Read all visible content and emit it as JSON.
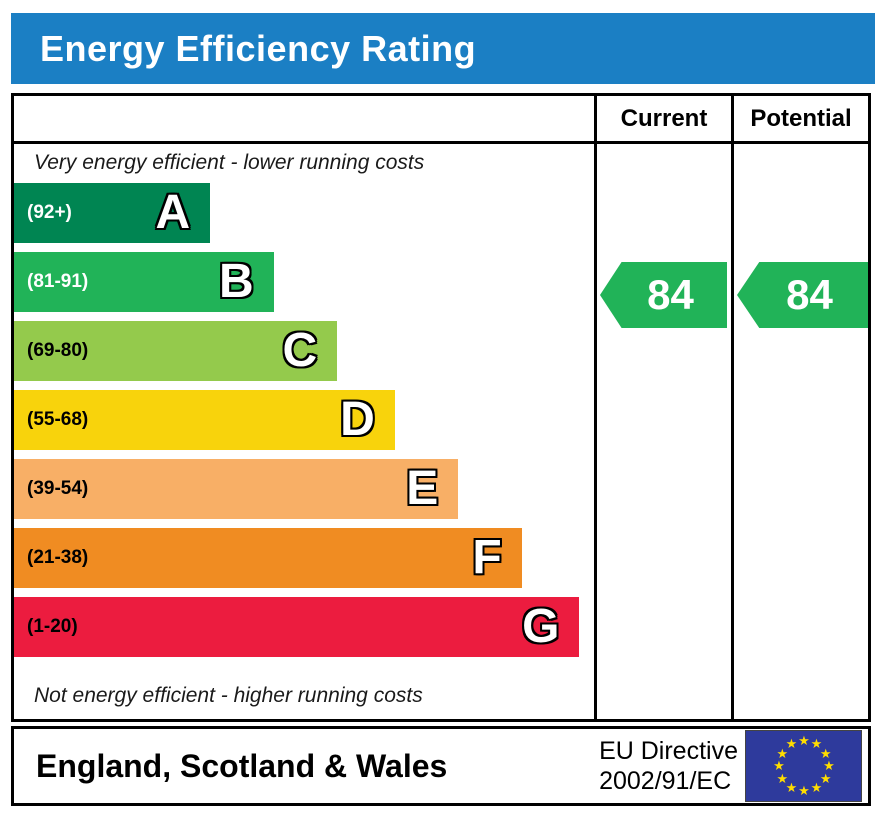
{
  "banner": {
    "title": "Energy Efficiency Rating",
    "background_color": "#1b7fc4",
    "text_color": "#ffffff"
  },
  "table": {
    "current_label": "Current",
    "potential_label": "Potential"
  },
  "chart_data": {
    "type": "bar",
    "title": "Energy Efficiency Rating",
    "top_note": "Very energy efficient - lower running costs",
    "bottom_note": "Not energy efficient - higher running costs",
    "bands": [
      {
        "letter": "A",
        "range": "(92+)",
        "min": 92,
        "max": 100,
        "color": "#008552",
        "label_color": "#ffffff",
        "width_pct": 34
      },
      {
        "letter": "B",
        "range": "(81-91)",
        "min": 81,
        "max": 91,
        "color": "#21b358",
        "label_color": "#ffffff",
        "width_pct": 45
      },
      {
        "letter": "C",
        "range": "(69-80)",
        "min": 69,
        "max": 80,
        "color": "#94ca4c",
        "label_color": "#000000",
        "width_pct": 56
      },
      {
        "letter": "D",
        "range": "(55-68)",
        "min": 55,
        "max": 68,
        "color": "#f8d30c",
        "label_color": "#000000",
        "width_pct": 66
      },
      {
        "letter": "E",
        "range": "(39-54)",
        "min": 39,
        "max": 54,
        "color": "#f8af66",
        "label_color": "#000000",
        "width_pct": 77
      },
      {
        "letter": "F",
        "range": "(21-38)",
        "min": 21,
        "max": 38,
        "color": "#f08c22",
        "label_color": "#000000",
        "width_pct": 88
      },
      {
        "letter": "G",
        "range": "(1-20)",
        "min": 1,
        "max": 20,
        "color": "#ec1c3f",
        "label_color": "#000000",
        "width_pct": 98
      }
    ],
    "current": {
      "value": 84,
      "band": "B",
      "color": "#21b358"
    },
    "potential": {
      "value": 84,
      "band": "B",
      "color": "#21b358"
    }
  },
  "footer": {
    "region": "England, Scotland & Wales",
    "directive_line1": "EU Directive",
    "directive_line2": "2002/91/EC",
    "eu_flag": {
      "background": "#2e3a9c",
      "star_color": "#ffdd00",
      "star_count": 12
    }
  }
}
